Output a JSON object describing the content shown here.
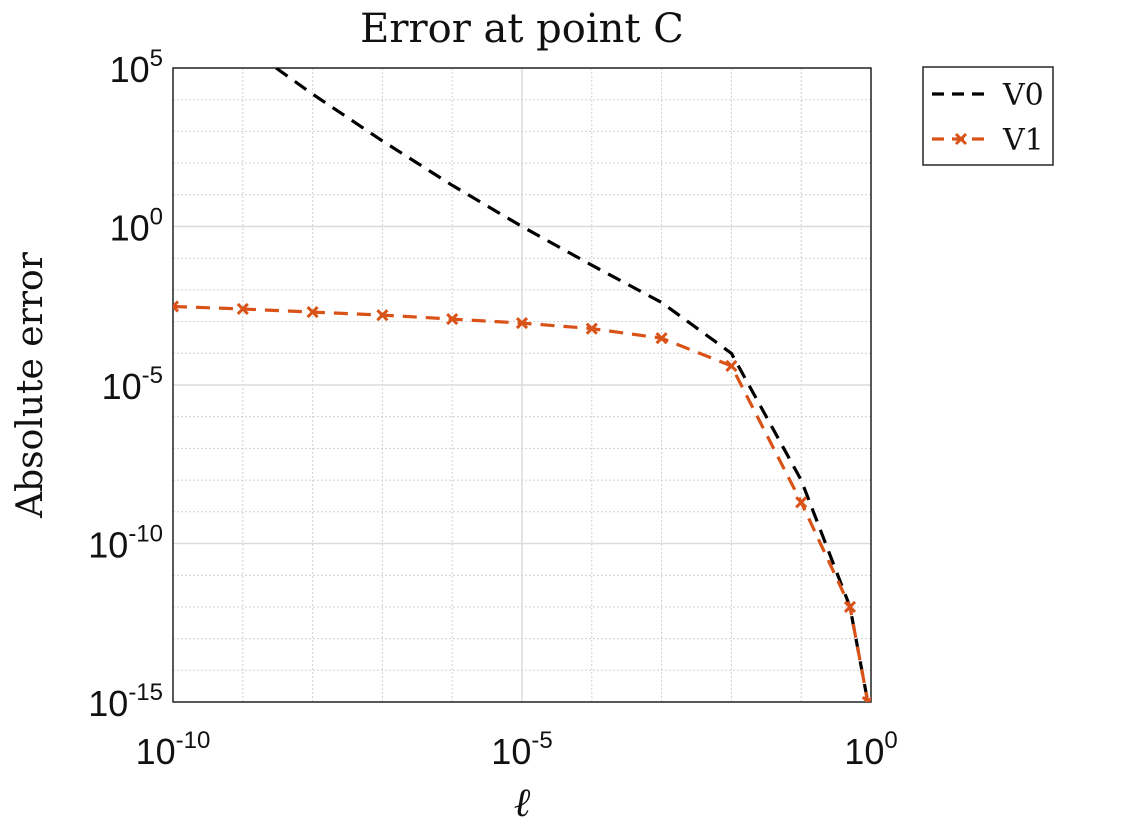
{
  "chart_data": {
    "type": "line",
    "title": "Error at point C",
    "xlabel": "ℓ",
    "ylabel": "Absolute error",
    "xscale": "log",
    "yscale": "log",
    "xlim": [
      1e-10,
      1
    ],
    "ylim": [
      1e-15,
      100000.0
    ],
    "xticks": [
      {
        "base": "10",
        "exp": "-10"
      },
      {
        "base": "10",
        "exp": "-5"
      },
      {
        "base": "10",
        "exp": "0"
      }
    ],
    "yticks": [
      {
        "base": "10",
        "exp": "5"
      },
      {
        "base": "10",
        "exp": "0"
      },
      {
        "base": "10",
        "exp": "-5"
      },
      {
        "base": "10",
        "exp": "-10"
      },
      {
        "base": "10",
        "exp": "-15"
      }
    ],
    "grid": true,
    "legend_position": "outside top-right",
    "series": [
      {
        "name": "V0",
        "color": "#000000",
        "style": "dashed",
        "marker": "none",
        "x": [
          3e-09,
          1e-08,
          1e-07,
          1e-06,
          1e-05,
          0.0001,
          0.001,
          0.01,
          0.1,
          0.5,
          0.9
        ],
        "y": [
          100000.0,
          15000.0,
          500,
          20,
          1,
          0.06,
          0.004,
          0.0001,
          1e-08,
          1e-12,
          1e-15
        ]
      },
      {
        "name": "V1",
        "color": "#d95319",
        "style": "dashed",
        "marker": "x",
        "x": [
          1e-10,
          1e-09,
          1e-08,
          1e-07,
          1e-06,
          1e-05,
          0.0001,
          0.001,
          0.01,
          0.1,
          0.5,
          0.9
        ],
        "y": [
          0.003,
          0.0025,
          0.002,
          0.0016,
          0.0012,
          0.0009,
          0.0006,
          0.0003,
          4e-05,
          2e-09,
          1e-12,
          1e-15
        ]
      }
    ]
  }
}
